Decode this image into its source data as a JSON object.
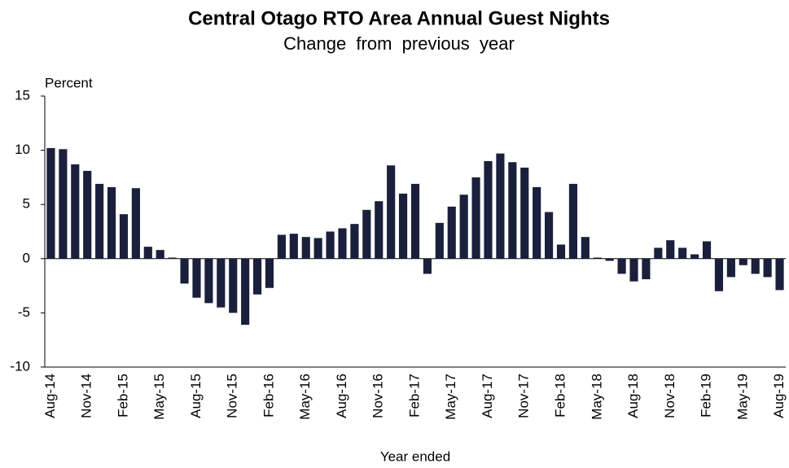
{
  "chart_data": {
    "type": "bar",
    "title": "Central Otago RTO Area Annual  Guest Nights",
    "subtitle": "Change  from  previous  year",
    "y_axis_label": "Percent",
    "x_axis_label": "Year ended",
    "categories": [
      "Aug-14",
      null,
      null,
      "Nov-14",
      null,
      null,
      "Feb-15",
      null,
      null,
      "May-15",
      null,
      null,
      "Aug-15",
      null,
      null,
      "Nov-15",
      null,
      null,
      "Feb-16",
      null,
      null,
      "May-16",
      null,
      null,
      "Aug-16",
      null,
      null,
      "Nov-16",
      null,
      null,
      "Feb-17",
      null,
      null,
      "May-17",
      null,
      null,
      "Aug-17",
      null,
      null,
      "Nov-17",
      null,
      null,
      "Feb-18",
      null,
      null,
      "May-18",
      null,
      null,
      "Aug-18",
      null,
      null,
      "Nov-18",
      null,
      null,
      "Feb-19",
      null,
      null,
      "May-19",
      null,
      null,
      "Aug-19"
    ],
    "values": [
      10.2,
      10.1,
      8.7,
      8.1,
      6.9,
      6.6,
      4.1,
      6.5,
      1.1,
      0.8,
      0.1,
      -2.3,
      -3.6,
      -4.1,
      -4.5,
      -5.0,
      -6.1,
      -3.3,
      -2.7,
      2.2,
      2.3,
      2.0,
      1.9,
      2.5,
      2.8,
      3.2,
      4.5,
      5.3,
      8.6,
      6.0,
      6.9,
      -1.4,
      3.3,
      4.8,
      5.9,
      7.5,
      9.0,
      9.7,
      8.9,
      8.4,
      6.6,
      4.3,
      1.3,
      6.9,
      2.0,
      0.1,
      -0.2,
      -1.4,
      -2.1,
      -1.9,
      1.0,
      1.7,
      1.0,
      0.4,
      1.6,
      -3.0,
      -1.7,
      -0.6,
      -1.4,
      -1.7,
      -2.9
    ],
    "color": "#1a1f3c",
    "ylim": [
      -10,
      15
    ],
    "yticks": [
      -10,
      -5,
      0,
      5,
      10,
      15
    ],
    "grid": false
  }
}
